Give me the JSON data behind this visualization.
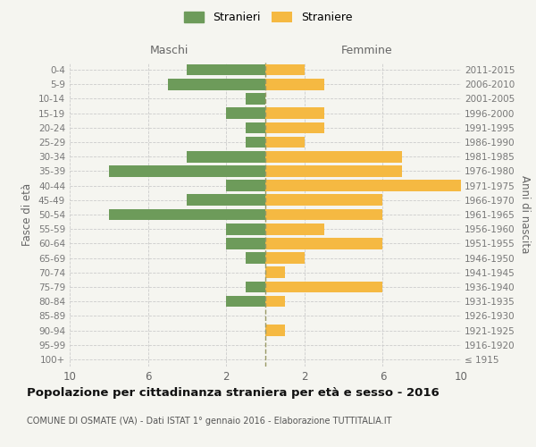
{
  "age_groups": [
    "100+",
    "95-99",
    "90-94",
    "85-89",
    "80-84",
    "75-79",
    "70-74",
    "65-69",
    "60-64",
    "55-59",
    "50-54",
    "45-49",
    "40-44",
    "35-39",
    "30-34",
    "25-29",
    "20-24",
    "15-19",
    "10-14",
    "5-9",
    "0-4"
  ],
  "birth_years": [
    "≤ 1915",
    "1916-1920",
    "1921-1925",
    "1926-1930",
    "1931-1935",
    "1936-1940",
    "1941-1945",
    "1946-1950",
    "1951-1955",
    "1956-1960",
    "1961-1965",
    "1966-1970",
    "1971-1975",
    "1976-1980",
    "1981-1985",
    "1986-1990",
    "1991-1995",
    "1996-2000",
    "2001-2005",
    "2006-2010",
    "2011-2015"
  ],
  "males": [
    0,
    0,
    0,
    0,
    2,
    1,
    0,
    1,
    2,
    2,
    8,
    4,
    2,
    8,
    4,
    1,
    1,
    2,
    1,
    5,
    4
  ],
  "females": [
    0,
    0,
    1,
    0,
    1,
    6,
    1,
    2,
    6,
    3,
    6,
    6,
    10,
    7,
    7,
    2,
    3,
    3,
    0,
    3,
    2
  ],
  "male_color": "#6d9b5a",
  "female_color": "#f5b942",
  "bg_color": "#f5f5f0",
  "grid_color": "#cccccc",
  "title": "Popolazione per cittadinanza straniera per età e sesso - 2016",
  "subtitle": "COMUNE DI OSMATE (VA) - Dati ISTAT 1° gennaio 2016 - Elaborazione TUTTITALIA.IT",
  "left_header": "Maschi",
  "right_header": "Femmine",
  "y_left_label": "Fasce di età",
  "y_right_label": "Anni di nascita",
  "legend_male": "Stranieri",
  "legend_female": "Straniere",
  "xlim": 10,
  "xtick_vals": [
    -10,
    -6,
    -2,
    2,
    6,
    10
  ],
  "xtick_labels": [
    "10",
    "6",
    "2",
    "2",
    "6",
    "10"
  ]
}
